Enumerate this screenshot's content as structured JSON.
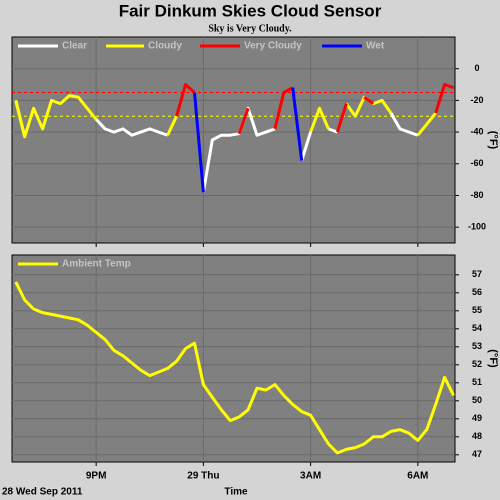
{
  "chart_data": [
    {
      "type": "line",
      "title": "Fair Dinkum Skies Cloud Sensor",
      "subtitle": "Sky is Very Cloudy.",
      "x": [
        18.75,
        19,
        19.25,
        19.5,
        19.75,
        20,
        20.25,
        20.5,
        20.75,
        21,
        21.25,
        21.5,
        21.75,
        22,
        22.25,
        22.5,
        22.75,
        23,
        23.25,
        23.5,
        23.75,
        24,
        24.25,
        24.5,
        24.75,
        25,
        25.25,
        25.5,
        25.75,
        26,
        26.25,
        26.5,
        26.75,
        27,
        27.25,
        27.5,
        27.75,
        28,
        28.25,
        28.5,
        28.75,
        29,
        29.25,
        29.5,
        29.75,
        30,
        30.25,
        30.5,
        30.75,
        31
      ],
      "series": [
        {
          "name": "Clear",
          "color": "#ffffff",
          "values": [
            -20,
            -43,
            null,
            null,
            null,
            null,
            null,
            null,
            null,
            -32,
            -38,
            -40,
            -38,
            -42,
            -40,
            -38,
            -40,
            -42,
            null,
            null,
            null,
            -78,
            -45,
            -42,
            -42,
            -41,
            -25,
            -42,
            -40,
            -38,
            null,
            null,
            -58,
            -40,
            null,
            -38,
            -40,
            null,
            null,
            null,
            null,
            null,
            -28,
            -38,
            -40,
            -42,
            null,
            null,
            null,
            null
          ]
        },
        {
          "name": "Cloudy",
          "color": "#ffff00",
          "values": [
            -20,
            -43,
            -25,
            -38,
            -20,
            -22,
            -17,
            -18,
            -25,
            -32,
            null,
            null,
            null,
            null,
            null,
            null,
            null,
            -42,
            -30,
            null,
            null,
            null,
            null,
            null,
            null,
            null,
            null,
            null,
            null,
            null,
            null,
            null,
            null,
            -40,
            -25,
            -38,
            null,
            -22,
            -30,
            -18,
            -22,
            -20,
            -28,
            null,
            null,
            -42,
            -35,
            -28,
            null,
            null
          ]
        },
        {
          "name": "Very Cloudy",
          "color": "#ff0000",
          "values": [
            null,
            null,
            null,
            null,
            null,
            null,
            null,
            null,
            null,
            null,
            null,
            null,
            null,
            null,
            null,
            null,
            null,
            null,
            -30,
            -10,
            -15,
            null,
            null,
            null,
            null,
            -41,
            -25,
            null,
            null,
            -38,
            -15,
            -12,
            null,
            null,
            null,
            null,
            -40,
            -22,
            null,
            -18,
            -22,
            null,
            null,
            null,
            null,
            null,
            null,
            -28,
            -10,
            -12
          ]
        },
        {
          "name": "Wet",
          "color": "#0000ff",
          "values": [
            null,
            null,
            null,
            null,
            null,
            null,
            null,
            null,
            null,
            null,
            null,
            null,
            null,
            null,
            null,
            null,
            null,
            null,
            null,
            null,
            -15,
            -78,
            null,
            null,
            null,
            null,
            null,
            null,
            null,
            null,
            null,
            -12,
            -58,
            null,
            null,
            null,
            null,
            null,
            null,
            null,
            null,
            null,
            null,
            null,
            null,
            null,
            null,
            null,
            null,
            null
          ]
        }
      ],
      "thresholds": [
        {
          "value": -15,
          "color": "#ff0000"
        },
        {
          "value": -30,
          "color": "#ffff00"
        }
      ],
      "xlim": [
        18.645,
        31.04
      ],
      "ylim": [
        -110,
        20
      ],
      "yticks": [
        0,
        -20,
        -40,
        -60,
        -80,
        -100
      ],
      "xticks": [
        {
          "value": 21,
          "label": "9PM"
        },
        {
          "value": 24,
          "label": "29 Thu"
        },
        {
          "value": 27,
          "label": "3AM"
        },
        {
          "value": 30,
          "label": "6AM"
        }
      ],
      "ylabel": "(°F)",
      "grid": true
    },
    {
      "type": "line",
      "x": [
        18.75,
        19,
        19.25,
        19.5,
        19.75,
        20,
        20.25,
        20.5,
        20.75,
        21,
        21.25,
        21.5,
        21.75,
        22,
        22.25,
        22.5,
        22.75,
        23,
        23.25,
        23.5,
        23.75,
        24,
        24.25,
        24.5,
        24.75,
        25,
        25.25,
        25.5,
        25.75,
        26,
        26.25,
        26.5,
        26.75,
        27,
        27.25,
        27.5,
        27.75,
        28,
        28.25,
        28.5,
        28.75,
        29,
        29.25,
        29.5,
        29.75,
        30,
        30.25,
        30.5,
        30.75,
        31
      ],
      "series": [
        {
          "name": "Ambient Temp",
          "color": "#ffff00",
          "values": [
            56.6,
            55.6,
            55.1,
            54.9,
            54.8,
            54.7,
            54.6,
            54.5,
            54.2,
            53.8,
            53.4,
            52.8,
            52.5,
            52.1,
            51.7,
            51.4,
            51.6,
            51.8,
            52.2,
            52.9,
            53.2,
            50.9,
            50.2,
            49.5,
            48.9,
            49.1,
            49.5,
            50.7,
            50.6,
            50.9,
            50.3,
            49.8,
            49.4,
            49.2,
            48.4,
            47.6,
            47.1,
            47.3,
            47.4,
            47.6,
            48.0,
            48.0,
            48.3,
            48.4,
            48.2,
            47.8,
            48.4,
            49.8,
            51.3,
            50.3
          ]
        }
      ],
      "xlim": [
        18.645,
        31.04
      ],
      "ylim": [
        46.6,
        58.1
      ],
      "yticks": [
        47,
        48,
        49,
        50,
        51,
        52,
        53,
        54,
        55,
        56,
        57
      ],
      "xticks": [
        {
          "value": 21,
          "label": "9PM"
        },
        {
          "value": 24,
          "label": "29 Thu"
        },
        {
          "value": 27,
          "label": "3AM"
        },
        {
          "value": 30,
          "label": "6AM"
        }
      ],
      "ylabel": "(°F)",
      "xlabel": "Time",
      "date_label": "28 Wed Sep 2011",
      "grid": true
    }
  ]
}
